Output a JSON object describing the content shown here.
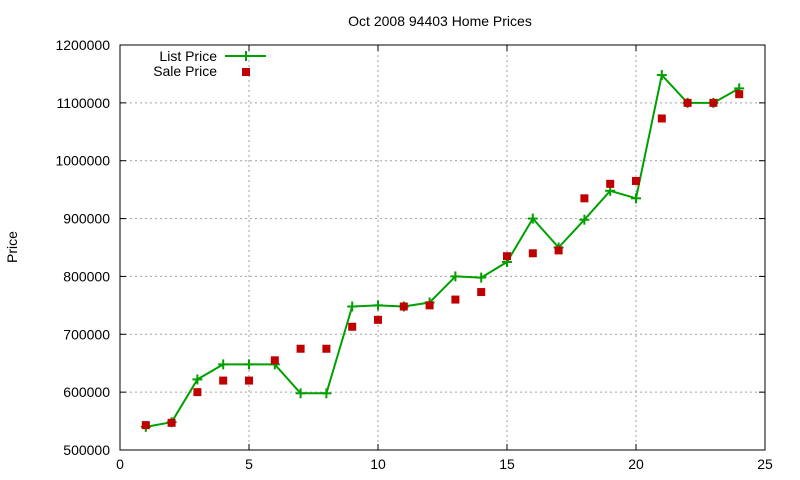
{
  "chart_data": {
    "type": "line",
    "title": "Oct 2008 94403 Home Prices",
    "xlabel": "",
    "ylabel": "Price",
    "xlim": [
      0,
      25
    ],
    "ylim": [
      500000,
      1200000
    ],
    "xticks": [
      0,
      5,
      10,
      15,
      20,
      25
    ],
    "yticks": [
      500000,
      600000,
      700000,
      800000,
      900000,
      1000000,
      1100000,
      1200000
    ],
    "grid": true,
    "legend_position": "top-left",
    "series": [
      {
        "name": "List Price",
        "style": "line-with-plus-markers",
        "color": "#00a000",
        "x": [
          1,
          2,
          3,
          4,
          5,
          6,
          7,
          8,
          9,
          10,
          11,
          12,
          13,
          14,
          15,
          16,
          17,
          18,
          19,
          20,
          21,
          22,
          23,
          24
        ],
        "values": [
          540000,
          548000,
          622000,
          648000,
          648000,
          648000,
          598000,
          598000,
          748000,
          750000,
          748000,
          755000,
          800000,
          798000,
          825000,
          900000,
          850000,
          898000,
          948000,
          935000,
          1148000,
          1100000,
          1100000,
          1125000
        ]
      },
      {
        "name": "Sale Price",
        "style": "square-markers",
        "color": "#c00000",
        "x": [
          1,
          2,
          3,
          4,
          5,
          6,
          7,
          8,
          9,
          10,
          11,
          12,
          13,
          14,
          15,
          16,
          17,
          18,
          19,
          20,
          21,
          22,
          23,
          24
        ],
        "values": [
          543000,
          547000,
          600000,
          620000,
          620000,
          655000,
          675000,
          675000,
          713000,
          725000,
          748000,
          750000,
          760000,
          773000,
          835000,
          840000,
          845000,
          935000,
          960000,
          965000,
          1073000,
          1100000,
          1100000,
          1115000
        ]
      }
    ]
  }
}
